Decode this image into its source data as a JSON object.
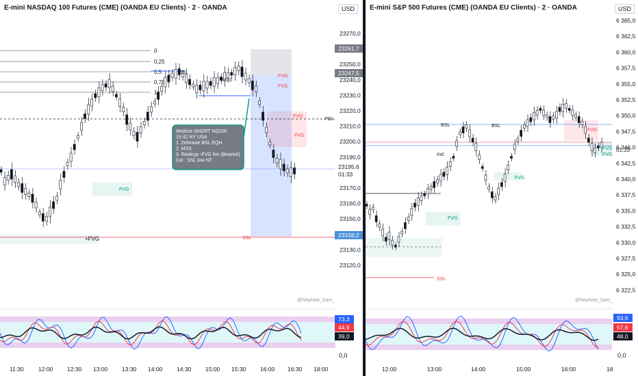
{
  "left": {
    "title": "E-mini NASDAQ 100 Futures (CME) (OANDA EU Clients) · 2 · OANDA",
    "currency": "USD",
    "price_ticks": [
      "23270,0",
      "23260,0",
      "23250,0",
      "23240,0",
      "23230,0",
      "23220,0",
      "23210,0",
      "23200,0",
      "23190,0",
      "23180,0",
      "23170,0",
      "23160,0",
      "23150,0",
      "23140,0",
      "23130,0",
      "23120,0"
    ],
    "price_tags": [
      {
        "label": "23261,7",
        "bg": "#787b86"
      },
      {
        "label": "23247,5",
        "bg": "#787b86"
      },
      {
        "label": "23195,6",
        "bg": "#ffffff"
      },
      {
        "label": "01:33",
        "bg": "#ffffff"
      },
      {
        "label": "23158,2",
        "bg": "#4a90d9"
      }
    ],
    "fib_levels": [
      "0",
      "0,25",
      "0,5",
      "0,75",
      "1"
    ],
    "labels": {
      "bsl": "BSL",
      "mss": "MSS",
      "fvg": "FVG",
      "pdl": "PDL",
      "ssl": "SSL",
      "plus_fvg": "+FVG",
      "watermark": "@Nephew_Sam_"
    },
    "note_lines": [
      "Wejście SHORT NQ100",
      "15:42 NY USA",
      "1. Zebranie BSL EQH",
      "2. MSS",
      "3. Reakcja  -FVG 5m (Bearish)",
      "Cel : SSL low NT"
    ],
    "time_ticks": [
      "11:30",
      "12:00",
      "12:30",
      "13:00",
      "13:30",
      "14:00",
      "14:30",
      "15:00",
      "15:30",
      "16:00",
      "16:30",
      "18:00"
    ],
    "osc": {
      "tags": [
        "73,3",
        "44,9",
        "39,0"
      ],
      "tag_colors": [
        "#2962ff",
        "#f23645",
        "#131722"
      ],
      "zero": "0,0"
    }
  },
  "right": {
    "title": "E-mini S&P 500 Futures (CME) (OANDA EU Clients) · 2 · OANDA",
    "currency": "USD",
    "price_ticks": [
      "6 365,0",
      "6 362,5",
      "6 360,0",
      "6 357,5",
      "6 355,0",
      "6 352,5",
      "6 350,0",
      "6 347,5",
      "6 346,0",
      "6 342,5",
      "6 340,0",
      "6 337,5",
      "6 335,0",
      "6 332,5",
      "6 330,0",
      "6 327,5",
      "6 325,0",
      "6 322,5"
    ],
    "time_readout": "01:33",
    "labels": {
      "bsl": "BSL",
      "ind": "Ind.",
      "fvg": "FVG",
      "ssl": "SSL",
      "watermark": "@Nephew_Sam_"
    },
    "time_ticks": [
      "12:00",
      "13:00",
      "14:00",
      "15:00",
      "16:00",
      "18"
    ],
    "osc": {
      "tags": [
        "93,6",
        "57,6",
        "48,0"
      ],
      "tag_colors": [
        "#2962ff",
        "#f23645",
        "#131722"
      ],
      "zero": "0,0"
    }
  },
  "colors": {
    "up": "#131722",
    "fvg_red": "#f23645",
    "fvg_green": "#089981",
    "ssl": "#f23645",
    "blue": "#2962ff"
  }
}
